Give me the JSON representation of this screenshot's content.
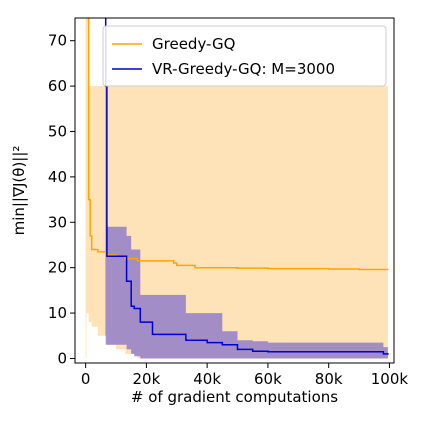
{
  "chart_data": {
    "type": "line",
    "title": "",
    "xlabel": "# of gradient computations",
    "ylabel": "min||∇J(θ)||²",
    "xlim": [
      -3500,
      101500
    ],
    "ylim": [
      -1,
      75
    ],
    "xticks": [
      {
        "value": 0,
        "label": "0"
      },
      {
        "value": 20000,
        "label": "20k"
      },
      {
        "value": 40000,
        "label": "40k"
      },
      {
        "value": 60000,
        "label": "60k"
      },
      {
        "value": 80000,
        "label": "80k"
      },
      {
        "value": 100000,
        "label": "100k"
      }
    ],
    "yticks": [
      {
        "value": 0,
        "label": "0"
      },
      {
        "value": 10,
        "label": "10"
      },
      {
        "value": 20,
        "label": "20"
      },
      {
        "value": 30,
        "label": "30"
      },
      {
        "value": 40,
        "label": "40"
      },
      {
        "value": 50,
        "label": "50"
      },
      {
        "value": 60,
        "label": "60"
      },
      {
        "value": 70,
        "label": "70"
      }
    ],
    "grid": false,
    "legend_position": "top-right",
    "series": [
      {
        "name": "Greedy-GQ",
        "color": "#ffa500",
        "band_color": "#ffd9a0",
        "x": [
          0,
          300,
          1000,
          1500,
          2000,
          4000,
          7000,
          10000,
          13000,
          17000,
          29000,
          30000,
          35000,
          36000,
          50000,
          60000,
          80000,
          90000,
          99500
        ],
        "mean": [
          200,
          80,
          35,
          27,
          24,
          23.5,
          22.8,
          22.5,
          22.0,
          21.5,
          21.0,
          20.5,
          20.5,
          20.0,
          19.9,
          19.8,
          19.7,
          19.6,
          19.5
        ],
        "lower": [
          0,
          10,
          8,
          8,
          7,
          5,
          3,
          2,
          1,
          0,
          0,
          0,
          0,
          0,
          0,
          0,
          0,
          0,
          0
        ],
        "upper": [
          200,
          200,
          60,
          60,
          60,
          60,
          60,
          60,
          60,
          60,
          60,
          60,
          60,
          60,
          60,
          60,
          60,
          60,
          60
        ]
      },
      {
        "name": "VR-Greedy-GQ: M=3000",
        "color": "#0000cc",
        "band_color": "#7b68cc",
        "x": [
          6500,
          6600,
          7000,
          12000,
          13500,
          15000,
          16000,
          18000,
          20000,
          22000,
          25000,
          30000,
          33000,
          40000,
          45000,
          50000,
          55000,
          60000,
          80000,
          95000,
          98000,
          99500
        ],
        "mean": [
          80,
          60,
          22.5,
          22.5,
          17,
          11.5,
          11,
          8,
          8,
          5.3,
          5.3,
          5.3,
          4,
          3.5,
          3,
          2,
          1.6,
          1.5,
          1.5,
          1.5,
          1.0,
          0.8
        ],
        "lower": [
          5,
          3,
          3,
          3,
          2,
          1,
          0.5,
          0,
          0,
          0,
          0,
          0,
          0,
          0,
          0,
          0,
          0,
          0,
          0,
          0,
          0,
          0
        ],
        "upper": [
          80,
          60,
          29,
          29,
          27,
          24,
          24,
          14,
          14,
          14,
          14,
          14,
          10,
          10,
          6,
          4,
          3.8,
          3.5,
          3.5,
          3.5,
          2.5,
          1.5
        ]
      }
    ]
  }
}
